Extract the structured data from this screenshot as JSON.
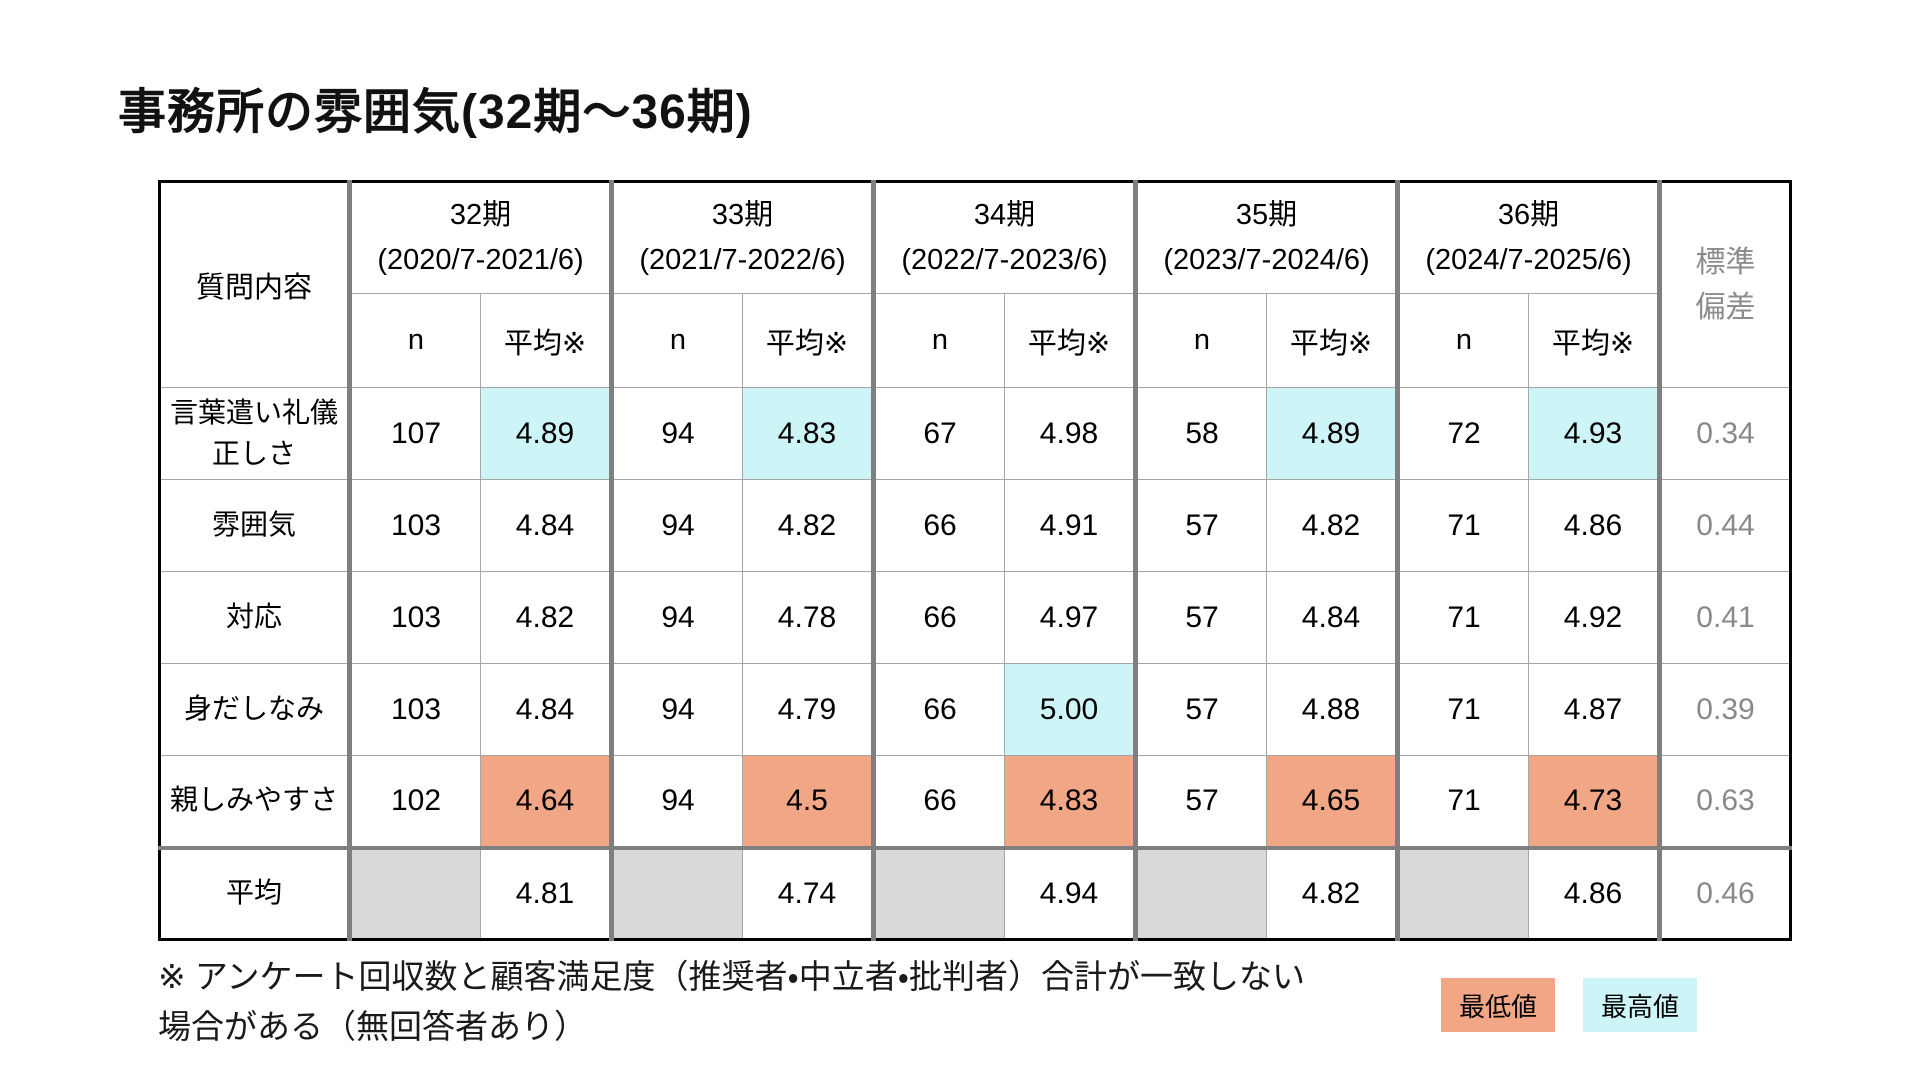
{
  "title": "事務所の雰囲気(32期～36期)",
  "colors": {
    "highlight_high": "#CDF4F7",
    "highlight_low": "#F1A686",
    "empty_cell_gray": "#D9D9D9",
    "muted_text": "#8C8C8C",
    "group_separator": "#7F7F7F",
    "thin_border": "#A6A6A6"
  },
  "chart_data": {
    "type": "table",
    "title": "事務所の雰囲気(32期～36期)",
    "question_column_header": "質問内容",
    "std_column_header_lines": [
      "標準",
      "偏差"
    ],
    "sub_headers": {
      "n": "n",
      "mean": "平均※"
    },
    "periods": [
      {
        "label": "32期",
        "range": "(2020/7-2021/6)"
      },
      {
        "label": "33期",
        "range": "(2021/7-2022/6)"
      },
      {
        "label": "34期",
        "range": "(2022/7-2023/6)"
      },
      {
        "label": "35期",
        "range": "(2023/7-2024/6)"
      },
      {
        "label": "36期",
        "range": "(2024/7-2025/6)"
      }
    ],
    "rows": [
      {
        "label": "言葉遣い礼儀正しさ",
        "n": [
          "107",
          "94",
          "67",
          "58",
          "72"
        ],
        "mean": [
          "4.89",
          "4.83",
          "4.98",
          "4.89",
          "4.93"
        ],
        "highlight": [
          "high",
          "high",
          "",
          "high",
          "high"
        ],
        "std": "0.34"
      },
      {
        "label": "雰囲気",
        "n": [
          "103",
          "94",
          "66",
          "57",
          "71"
        ],
        "mean": [
          "4.84",
          "4.82",
          "4.91",
          "4.82",
          "4.86"
        ],
        "highlight": [
          "",
          "",
          "",
          "",
          ""
        ],
        "std": "0.44"
      },
      {
        "label": "対応",
        "n": [
          "103",
          "94",
          "66",
          "57",
          "71"
        ],
        "mean": [
          "4.82",
          "4.78",
          "4.97",
          "4.84",
          "4.92"
        ],
        "highlight": [
          "",
          "",
          "",
          "",
          ""
        ],
        "std": "0.41"
      },
      {
        "label": "身だしなみ",
        "n": [
          "103",
          "94",
          "66",
          "57",
          "71"
        ],
        "mean": [
          "4.84",
          "4.79",
          "5.00",
          "4.88",
          "4.87"
        ],
        "highlight": [
          "",
          "",
          "high",
          "",
          ""
        ],
        "std": "0.39"
      },
      {
        "label": "親しみやすさ",
        "n": [
          "102",
          "94",
          "66",
          "57",
          "71"
        ],
        "mean": [
          "4.64",
          "4.5",
          "4.83",
          "4.65",
          "4.73"
        ],
        "highlight": [
          "low",
          "low",
          "low",
          "low",
          "low"
        ],
        "std": "0.63"
      }
    ],
    "average_row": {
      "label": "平均",
      "mean": [
        "4.81",
        "4.74",
        "4.94",
        "4.82",
        "4.86"
      ],
      "std": "0.46"
    },
    "legend_meaning": {
      "low": "column minimum",
      "high": "column maximum"
    }
  },
  "footnote": {
    "line1": "※ アンケート回収数と顧客満足度（推奨者・中立者・批判者）合計が一致しない",
    "line2": "場合がある（無回答者あり）"
  },
  "legend": {
    "low_label": "最低値",
    "high_label": "最高値"
  }
}
